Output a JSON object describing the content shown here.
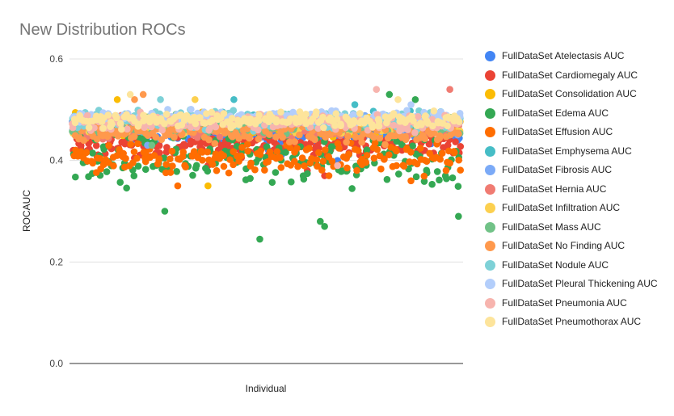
{
  "chart_data": {
    "type": "scatter",
    "title": "New Distribution ROCs",
    "xlabel": "Individual",
    "ylabel": "ROCAUC",
    "ylim": [
      0.0,
      0.6
    ],
    "y_ticks": [
      {
        "value": 0.0,
        "label": "0.0"
      },
      {
        "value": 0.2,
        "label": "0.2"
      },
      {
        "value": 0.4,
        "label": "0.4"
      },
      {
        "value": 0.6,
        "label": "0.6"
      }
    ],
    "x_count": 90,
    "grid": "horizontal",
    "legend_position": "right",
    "series": [
      {
        "name": "FullDataSet Atelectasis AUC",
        "color": "#4285F4",
        "center": 0.455,
        "spread": 0.03,
        "outliers": [
          0.42,
          0.4,
          0.41
        ]
      },
      {
        "name": "FullDataSet Cardiomegaly AUC",
        "color": "#EA4335",
        "center": 0.43,
        "spread": 0.035,
        "outliers": [
          0.37,
          0.38,
          0.39
        ]
      },
      {
        "name": "FullDataSet Consolidation AUC",
        "color": "#FBBC04",
        "center": 0.47,
        "spread": 0.03,
        "outliers": [
          0.35,
          0.52
        ]
      },
      {
        "name": "FullDataSet Edema AUC",
        "color": "#34A853",
        "center": 0.4,
        "spread": 0.09,
        "outliers": [
          0.53,
          0.52,
          0.27,
          0.245,
          0.28,
          0.29,
          0.3
        ]
      },
      {
        "name": "FullDataSet Effusion AUC",
        "color": "#FF6D01",
        "center": 0.405,
        "spread": 0.04,
        "outliers": [
          0.36,
          0.37,
          0.35,
          0.38
        ]
      },
      {
        "name": "FullDataSet Emphysema AUC",
        "color": "#46BDC6",
        "center": 0.475,
        "spread": 0.025,
        "outliers": [
          0.52,
          0.51
        ]
      },
      {
        "name": "FullDataSet Fibrosis AUC",
        "color": "#7BAAF7",
        "center": 0.47,
        "spread": 0.025,
        "outliers": [
          0.43
        ]
      },
      {
        "name": "FullDataSet Hernia AUC",
        "color": "#F07B72",
        "center": 0.465,
        "spread": 0.03,
        "outliers": [
          0.54
        ]
      },
      {
        "name": "FullDataSet Infiltration AUC",
        "color": "#FCD04F",
        "center": 0.47,
        "spread": 0.025,
        "outliers": [
          0.52
        ]
      },
      {
        "name": "FullDataSet Mass AUC",
        "color": "#71C287",
        "center": 0.47,
        "spread": 0.025,
        "outliers": [
          0.43
        ]
      },
      {
        "name": "FullDataSet No Finding AUC",
        "color": "#FF994D",
        "center": 0.455,
        "spread": 0.03,
        "outliers": [
          0.52,
          0.53
        ]
      },
      {
        "name": "FullDataSet Nodule AUC",
        "color": "#7ED1D7",
        "center": 0.48,
        "spread": 0.025,
        "outliers": [
          0.52
        ]
      },
      {
        "name": "FullDataSet Pleural Thickening AUC",
        "color": "#B3CEFB",
        "center": 0.485,
        "spread": 0.02,
        "outliers": [
          0.51
        ]
      },
      {
        "name": "FullDataSet Pneumonia AUC",
        "color": "#F7B4AE",
        "center": 0.475,
        "spread": 0.025,
        "outliers": [
          0.54,
          0.39
        ]
      },
      {
        "name": "FullDataSet Pneumothorax AUC",
        "color": "#FDE49B",
        "center": 0.48,
        "spread": 0.02,
        "outliers": [
          0.52,
          0.53
        ]
      }
    ]
  }
}
